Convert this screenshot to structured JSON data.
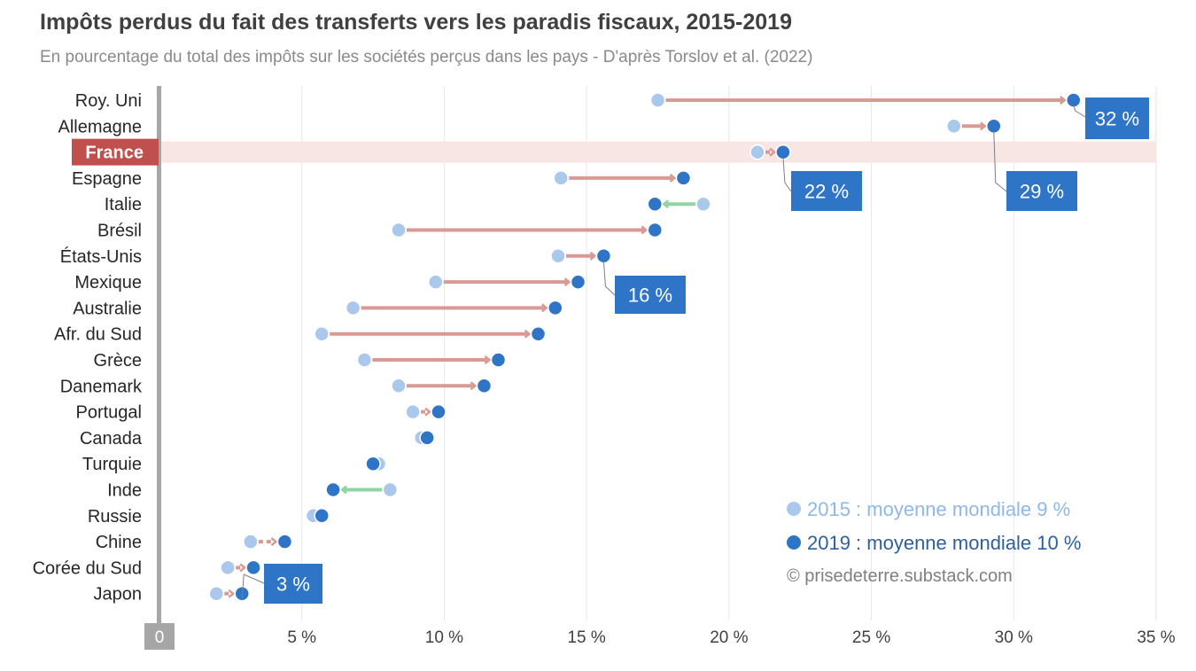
{
  "title": "Impôts perdus du fait des transferts vers les paradis fiscaux, 2015-2019",
  "subtitle": "En pourcentage du total des impôts sur les sociétés perçus dans les pays - D'après Torslov et al. (2022)",
  "chart_data": {
    "type": "dumbbell",
    "title": "Impôts perdus du fait des transferts vers les paradis fiscaux, 2015-2019",
    "xlabel": "",
    "ylabel": "",
    "xlim": [
      0,
      35
    ],
    "x_ticks": [
      {
        "value": 0,
        "label": "0"
      },
      {
        "value": 5,
        "label": "5 %"
      },
      {
        "value": 10,
        "label": "10 %"
      },
      {
        "value": 15,
        "label": "15 %"
      },
      {
        "value": 20,
        "label": "20 %"
      },
      {
        "value": 25,
        "label": "25 %"
      },
      {
        "value": 30,
        "label": "30 %"
      },
      {
        "value": 35,
        "label": "35 %"
      }
    ],
    "grid": true,
    "highlight": "France",
    "categories": [
      "Roy. Uni",
      "Allemagne",
      "France",
      "Espagne",
      "Italie",
      "Brésil",
      "États-Unis",
      "Mexique",
      "Australie",
      "Afr. du Sud",
      "Grèce",
      "Danemark",
      "Portugal",
      "Canada",
      "Turquie",
      "Inde",
      "Russie",
      "Chine",
      "Corée du Sud",
      "Japon"
    ],
    "series": [
      {
        "name": "2015",
        "color": "#a9c8ec",
        "values": [
          17.5,
          27.9,
          21.0,
          14.1,
          19.1,
          8.4,
          14.0,
          9.7,
          6.8,
          5.7,
          7.2,
          8.4,
          8.9,
          9.2,
          7.7,
          8.1,
          5.4,
          3.2,
          2.4,
          2.0
        ]
      },
      {
        "name": "2019",
        "color": "#2e75c8",
        "values": [
          32.1,
          29.3,
          21.9,
          18.4,
          17.4,
          17.4,
          15.6,
          14.7,
          13.9,
          13.3,
          11.9,
          11.4,
          9.8,
          9.4,
          7.5,
          6.1,
          5.7,
          4.4,
          3.3,
          2.9
        ]
      }
    ],
    "callouts": [
      {
        "country": "Roy. Uni",
        "label": "32 %"
      },
      {
        "country": "Allemagne",
        "label": "29 %"
      },
      {
        "country": "France",
        "label": "22 %"
      },
      {
        "country": "États-Unis",
        "label": "16 %"
      },
      {
        "country": "Japon",
        "label": "3 %"
      }
    ],
    "legend": {
      "position": "bottom-right",
      "entries": [
        {
          "label": "2015 : moyenne mondiale 9 %",
          "color": "#a9c8ec"
        },
        {
          "label": "2019 : moyenne mondiale 10 %",
          "color": "#2e75c8"
        }
      ],
      "credit": "© prisedeterre.substack.com"
    },
    "colors": {
      "increase": "#d99a94",
      "decrease": "#8dd6a3",
      "highlight_band": "#f8e6e5",
      "highlight_label": "#c0504d",
      "callout": "#2e75c8"
    }
  }
}
